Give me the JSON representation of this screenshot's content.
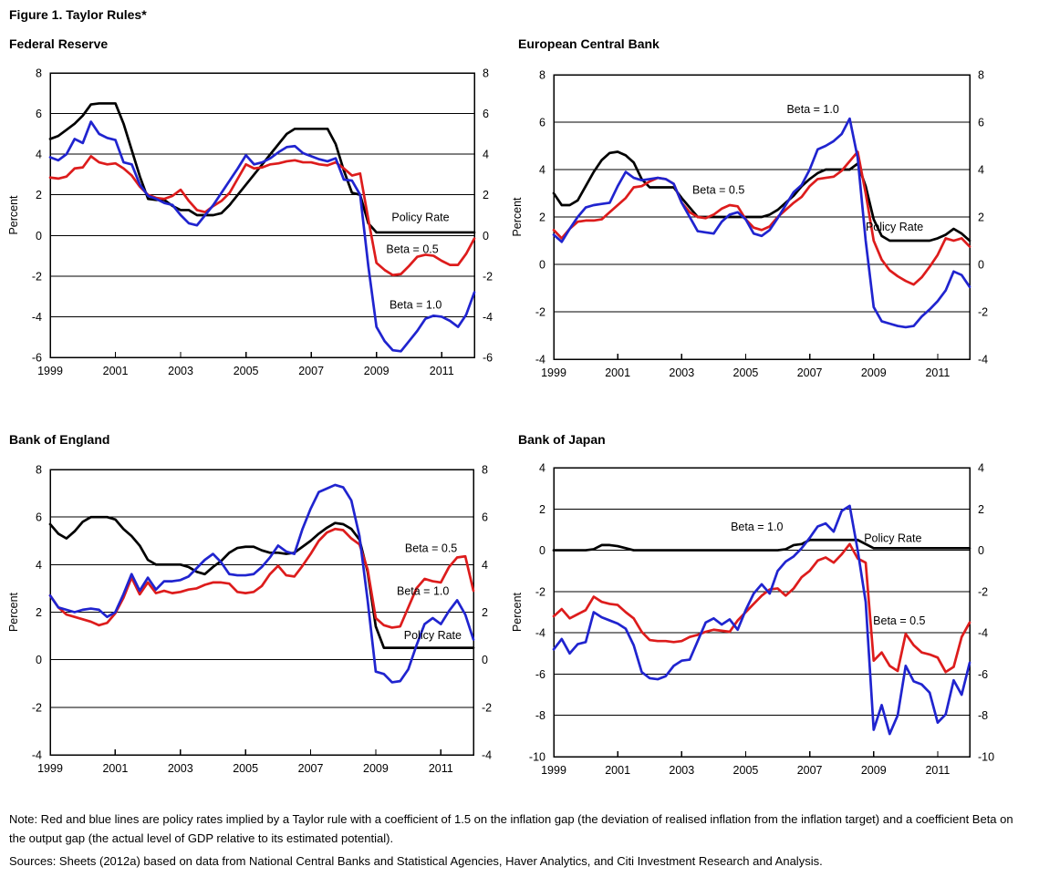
{
  "figure": {
    "title": "Figure 1. Taylor Rules*"
  },
  "note": "Note: Red and blue lines are policy rates implied by a Taylor rule with a coefficient of 1.5 on the inflation gap (the deviation of realised inflation from the inflation target) and a coefficient Beta on the output gap (the actual level of GDP relative to its estimated potential).",
  "sources": "Sources: Sheets (2012a) based on data from National Central Banks and Statistical Agencies, Haver Analytics, and Citi Investment Research and Analysis.",
  "colors": {
    "policy_rate": "#000000",
    "beta_05": "#dd1c1c",
    "beta_10": "#2024cf"
  },
  "chart_data": [
    {
      "type": "line",
      "title": "Federal Reserve",
      "ylabel": "Percent",
      "ylim": [
        -6,
        8
      ],
      "ytick_step": 2,
      "xlim": [
        1999,
        2012
      ],
      "xticks": [
        1999,
        2001,
        2003,
        2005,
        2007,
        2009,
        2011
      ],
      "x_start": 1999.0,
      "x_step": 0.25,
      "grid": true,
      "legend": "in-plot annotations",
      "series": [
        {
          "name": "Policy Rate",
          "color_key": "policy_rate",
          "values": [
            4.75,
            4.9,
            5.2,
            5.5,
            5.9,
            6.45,
            6.5,
            6.5,
            6.5,
            5.5,
            4.2,
            2.9,
            1.8,
            1.75,
            1.75,
            1.45,
            1.25,
            1.25,
            1.0,
            1.0,
            1.0,
            1.1,
            1.5,
            2.0,
            2.5,
            3.0,
            3.5,
            4.0,
            4.5,
            5.0,
            5.25,
            5.25,
            5.25,
            5.25,
            5.25,
            4.5,
            3.2,
            2.1,
            2.0,
            0.6,
            0.15,
            0.15,
            0.15,
            0.15,
            0.15,
            0.15,
            0.15,
            0.15,
            0.15,
            0.15,
            0.15,
            0.15,
            0.15
          ]
        },
        {
          "name": "Beta = 0.5",
          "color_key": "beta_05",
          "values": [
            2.85,
            2.8,
            2.9,
            3.3,
            3.35,
            3.9,
            3.6,
            3.5,
            3.55,
            3.3,
            2.95,
            2.4,
            2.0,
            1.85,
            1.8,
            1.95,
            2.25,
            1.7,
            1.25,
            1.15,
            1.45,
            1.7,
            2.1,
            2.8,
            3.5,
            3.3,
            3.35,
            3.5,
            3.55,
            3.65,
            3.7,
            3.6,
            3.6,
            3.5,
            3.45,
            3.6,
            3.3,
            2.95,
            3.05,
            0.8,
            -1.35,
            -1.7,
            -1.95,
            -1.9,
            -1.5,
            -1.05,
            -0.95,
            -1.0,
            -1.25,
            -1.45,
            -1.45,
            -0.9,
            -0.15
          ]
        },
        {
          "name": "Beta = 1.0",
          "color_key": "beta_10",
          "values": [
            3.85,
            3.7,
            4.0,
            4.75,
            4.55,
            5.6,
            5.0,
            4.8,
            4.7,
            3.6,
            3.5,
            2.5,
            1.95,
            1.8,
            1.6,
            1.5,
            1.0,
            0.6,
            0.5,
            1.0,
            1.5,
            2.1,
            2.7,
            3.3,
            3.95,
            3.5,
            3.6,
            3.8,
            4.1,
            4.35,
            4.4,
            4.05,
            3.9,
            3.75,
            3.65,
            3.8,
            2.75,
            2.7,
            2.0,
            -1.5,
            -4.5,
            -5.2,
            -5.65,
            -5.7,
            -5.2,
            -4.7,
            -4.1,
            -3.95,
            -4.0,
            -4.2,
            -4.5,
            -3.9,
            -2.8
          ]
        }
      ],
      "annotations": [
        {
          "text": "Policy Rate",
          "x": 2010.35,
          "y": 0.9
        },
        {
          "text": "Beta = 0.5",
          "x": 2010.1,
          "y": -0.65
        },
        {
          "text": "Beta = 1.0",
          "x": 2010.2,
          "y": -3.4
        }
      ]
    },
    {
      "type": "line",
      "title": "European Central Bank",
      "ylabel": "Percent",
      "ylim": [
        -4,
        8
      ],
      "ytick_step": 2,
      "xlim": [
        1999,
        2012
      ],
      "xticks": [
        1999,
        2001,
        2003,
        2005,
        2007,
        2009,
        2011
      ],
      "x_start": 1999.0,
      "x_step": 0.25,
      "grid": true,
      "legend": "in-plot annotations",
      "series": [
        {
          "name": "Policy Rate",
          "color_key": "policy_rate",
          "values": [
            3.0,
            2.5,
            2.5,
            2.7,
            3.3,
            3.9,
            4.4,
            4.7,
            4.75,
            4.6,
            4.3,
            3.6,
            3.25,
            3.25,
            3.25,
            3.25,
            2.8,
            2.4,
            2.0,
            2.0,
            2.0,
            2.0,
            2.0,
            2.0,
            2.0,
            2.0,
            2.0,
            2.1,
            2.3,
            2.6,
            2.9,
            3.3,
            3.6,
            3.85,
            4.0,
            4.0,
            4.0,
            4.0,
            4.25,
            3.3,
            1.9,
            1.2,
            1.0,
            1.0,
            1.0,
            1.0,
            1.0,
            1.0,
            1.1,
            1.25,
            1.5,
            1.3,
            1.0
          ]
        },
        {
          "name": "Beta = 0.5",
          "color_key": "beta_05",
          "values": [
            1.45,
            1.1,
            1.5,
            1.8,
            1.85,
            1.85,
            1.9,
            2.2,
            2.5,
            2.8,
            3.25,
            3.3,
            3.5,
            3.65,
            3.6,
            3.4,
            2.6,
            2.2,
            2.0,
            1.95,
            2.1,
            2.35,
            2.5,
            2.45,
            1.9,
            1.55,
            1.45,
            1.6,
            2.0,
            2.3,
            2.6,
            2.85,
            3.3,
            3.6,
            3.65,
            3.7,
            3.95,
            4.35,
            4.75,
            3.0,
            1.0,
            0.2,
            -0.25,
            -0.5,
            -0.7,
            -0.85,
            -0.55,
            -0.1,
            0.4,
            1.1,
            1.0,
            1.1,
            0.75
          ]
        },
        {
          "name": "Beta = 1.0",
          "color_key": "beta_10",
          "values": [
            1.25,
            0.95,
            1.5,
            2.0,
            2.4,
            2.5,
            2.55,
            2.6,
            3.3,
            3.9,
            3.65,
            3.55,
            3.6,
            3.65,
            3.6,
            3.4,
            2.6,
            2.0,
            1.4,
            1.35,
            1.3,
            1.8,
            2.1,
            2.2,
            1.9,
            1.3,
            1.2,
            1.45,
            1.95,
            2.5,
            3.05,
            3.35,
            4.0,
            4.85,
            5.0,
            5.2,
            5.5,
            6.15,
            4.5,
            1.0,
            -1.8,
            -2.4,
            -2.5,
            -2.6,
            -2.65,
            -2.6,
            -2.2,
            -1.9,
            -1.55,
            -1.1,
            -0.3,
            -0.45,
            -0.95
          ]
        }
      ],
      "annotations": [
        {
          "text": "Beta = 1.0",
          "x": 2007.1,
          "y": 6.55
        },
        {
          "text": "Beta = 0.5",
          "x": 2004.15,
          "y": 3.15
        },
        {
          "text": "Policy Rate",
          "x": 2009.65,
          "y": 1.6
        }
      ]
    },
    {
      "type": "line",
      "title": "Bank of England",
      "ylabel": "Percent",
      "ylim": [
        -4,
        8
      ],
      "ytick_step": 2,
      "xlim": [
        1999,
        2012
      ],
      "xticks": [
        1999,
        2001,
        2003,
        2005,
        2007,
        2009,
        2011
      ],
      "x_start": 1999.0,
      "x_step": 0.25,
      "grid": true,
      "legend": "in-plot annotations",
      "series": [
        {
          "name": "Policy Rate",
          "color_key": "policy_rate",
          "values": [
            5.7,
            5.3,
            5.1,
            5.4,
            5.8,
            6.0,
            6.0,
            6.0,
            5.9,
            5.5,
            5.2,
            4.8,
            4.2,
            4.0,
            4.0,
            4.0,
            4.0,
            3.9,
            3.7,
            3.6,
            3.9,
            4.15,
            4.5,
            4.7,
            4.75,
            4.75,
            4.6,
            4.5,
            4.5,
            4.45,
            4.5,
            4.75,
            5.0,
            5.3,
            5.55,
            5.75,
            5.7,
            5.5,
            5.05,
            3.7,
            1.4,
            0.5,
            0.5,
            0.5,
            0.5,
            0.5,
            0.5,
            0.5,
            0.5,
            0.5,
            0.5,
            0.5,
            0.5
          ]
        },
        {
          "name": "Beta = 0.5",
          "color_key": "beta_05",
          "values": [
            2.7,
            2.2,
            1.9,
            1.8,
            1.7,
            1.6,
            1.45,
            1.55,
            1.95,
            2.6,
            3.45,
            2.75,
            3.25,
            2.8,
            2.9,
            2.8,
            2.85,
            2.95,
            3.0,
            3.15,
            3.25,
            3.25,
            3.2,
            2.85,
            2.8,
            2.85,
            3.1,
            3.6,
            3.95,
            3.55,
            3.5,
            3.95,
            4.45,
            5.0,
            5.35,
            5.5,
            5.45,
            5.1,
            4.85,
            3.8,
            1.75,
            1.45,
            1.35,
            1.4,
            2.2,
            3.0,
            3.4,
            3.3,
            3.25,
            3.9,
            4.3,
            4.35,
            2.9
          ]
        },
        {
          "name": "Beta = 1.0",
          "color_key": "beta_10",
          "values": [
            2.7,
            2.2,
            2.1,
            2.0,
            2.1,
            2.15,
            2.1,
            1.8,
            2.0,
            2.75,
            3.6,
            2.9,
            3.45,
            2.95,
            3.3,
            3.3,
            3.35,
            3.5,
            3.85,
            4.2,
            4.45,
            4.1,
            3.6,
            3.55,
            3.55,
            3.6,
            3.9,
            4.3,
            4.8,
            4.55,
            4.45,
            5.5,
            6.35,
            7.05,
            7.2,
            7.35,
            7.25,
            6.7,
            5.2,
            2.5,
            -0.5,
            -0.6,
            -0.95,
            -0.9,
            -0.4,
            0.6,
            1.5,
            1.75,
            1.5,
            2.05,
            2.5,
            1.9,
            0.85
          ]
        }
      ],
      "annotations": [
        {
          "text": "Beta = 0.5",
          "x": 2010.7,
          "y": 4.7
        },
        {
          "text": "Beta = 1.0",
          "x": 2010.45,
          "y": 2.9
        },
        {
          "text": "Policy Rate",
          "x": 2010.75,
          "y": 1.05
        }
      ]
    },
    {
      "type": "line",
      "title": "Bank of Japan",
      "ylabel": "Percent",
      "ylim": [
        -10,
        4
      ],
      "ytick_step": 2,
      "xlim": [
        1999,
        2012
      ],
      "xticks": [
        1999,
        2001,
        2003,
        2005,
        2007,
        2009,
        2011
      ],
      "x_start": 1999.0,
      "x_step": 0.25,
      "grid": true,
      "legend": "in-plot annotations",
      "series": [
        {
          "name": "Policy Rate",
          "color_key": "policy_rate",
          "values": [
            0.0,
            0.0,
            0.0,
            0.0,
            0.0,
            0.05,
            0.25,
            0.25,
            0.2,
            0.1,
            0.0,
            0.0,
            0.0,
            0.0,
            0.0,
            0.0,
            0.0,
            0.0,
            0.0,
            0.0,
            0.0,
            0.0,
            0.0,
            0.0,
            0.0,
            0.0,
            0.0,
            0.0,
            0.0,
            0.05,
            0.25,
            0.3,
            0.5,
            0.5,
            0.5,
            0.5,
            0.5,
            0.5,
            0.5,
            0.3,
            0.1,
            0.1,
            0.1,
            0.1,
            0.1,
            0.1,
            0.1,
            0.1,
            0.1,
            0.1,
            0.1,
            0.1,
            0.1
          ]
        },
        {
          "name": "Beta = 0.5",
          "color_key": "beta_05",
          "values": [
            -3.2,
            -2.85,
            -3.3,
            -3.1,
            -2.9,
            -2.25,
            -2.5,
            -2.6,
            -2.65,
            -3.0,
            -3.3,
            -3.95,
            -4.35,
            -4.4,
            -4.4,
            -4.45,
            -4.4,
            -4.2,
            -4.1,
            -3.95,
            -3.85,
            -3.9,
            -3.95,
            -3.4,
            -3.0,
            -2.6,
            -2.2,
            -1.9,
            -1.85,
            -2.2,
            -1.85,
            -1.3,
            -1.0,
            -0.5,
            -0.35,
            -0.6,
            -0.2,
            0.3,
            -0.4,
            -0.6,
            -5.35,
            -4.95,
            -5.6,
            -5.85,
            -4.05,
            -4.6,
            -4.95,
            -5.05,
            -5.2,
            -5.9,
            -5.65,
            -4.2,
            -3.5
          ]
        },
        {
          "name": "Beta = 1.0",
          "color_key": "beta_10",
          "values": [
            -4.8,
            -4.3,
            -5.0,
            -4.55,
            -4.45,
            -3.0,
            -3.25,
            -3.4,
            -3.55,
            -3.8,
            -4.6,
            -5.9,
            -6.2,
            -6.25,
            -6.1,
            -5.6,
            -5.35,
            -5.3,
            -4.4,
            -3.5,
            -3.3,
            -3.6,
            -3.35,
            -3.85,
            -2.9,
            -2.1,
            -1.65,
            -2.1,
            -1.0,
            -0.55,
            -0.3,
            0.1,
            0.6,
            1.15,
            1.3,
            0.9,
            1.9,
            2.15,
            0.0,
            -2.5,
            -8.7,
            -7.5,
            -8.9,
            -8.0,
            -5.6,
            -6.35,
            -6.5,
            -6.9,
            -8.35,
            -7.95,
            -6.3,
            -7.0,
            -5.45
          ]
        }
      ],
      "annotations": [
        {
          "text": "Beta = 1.0",
          "x": 2005.35,
          "y": 1.15
        },
        {
          "text": "Policy Rate",
          "x": 2009.6,
          "y": 0.6
        },
        {
          "text": "Beta = 0.5",
          "x": 2009.8,
          "y": -3.4
        }
      ]
    }
  ]
}
